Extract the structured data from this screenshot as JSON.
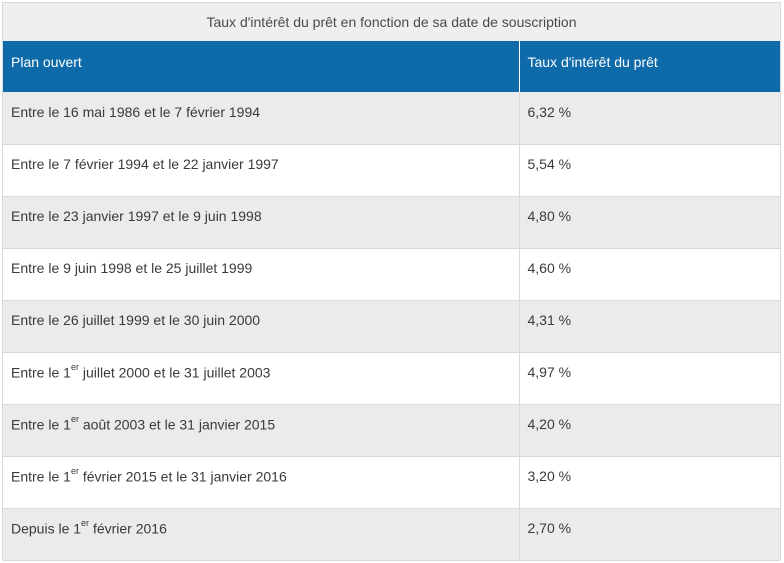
{
  "caption": "Taux d'intérêt du prêt en fonction de sa date de souscription",
  "headers": {
    "plan": "Plan ouvert",
    "rate": "Taux d'intérêt du prêt"
  },
  "rows": [
    {
      "pre": "Entre le 16 mai 1986 et le 7 février 1994",
      "sup": "",
      "post": "",
      "rate": "6,32 %"
    },
    {
      "pre": "Entre le 7 février 1994 et le 22 janvier 1997",
      "sup": "",
      "post": "",
      "rate": "5,54 %"
    },
    {
      "pre": "Entre le 23 janvier 1997 et le 9 juin 1998",
      "sup": "",
      "post": "",
      "rate": "4,80 %"
    },
    {
      "pre": "Entre le 9 juin 1998 et le 25 juillet 1999",
      "sup": "",
      "post": "",
      "rate": "4,60 %"
    },
    {
      "pre": "Entre le 26 juillet 1999 et le 30 juin 2000",
      "sup": "",
      "post": "",
      "rate": "4,31 %"
    },
    {
      "pre": "Entre le 1",
      "sup": "er",
      "post": " juillet 2000 et le 31 juillet 2003",
      "rate": "4,97 %"
    },
    {
      "pre": "Entre le 1",
      "sup": "er",
      "post": " août 2003 et le 31 janvier 2015",
      "rate": "4,20 %"
    },
    {
      "pre": "Entre le 1",
      "sup": "er",
      "post": " février 2015 et le 31 janvier 2016",
      "rate": "3,20 %"
    },
    {
      "pre": "Depuis le 1",
      "sup": "er",
      "post": " février 2016",
      "rate": "2,70 %"
    }
  ]
}
